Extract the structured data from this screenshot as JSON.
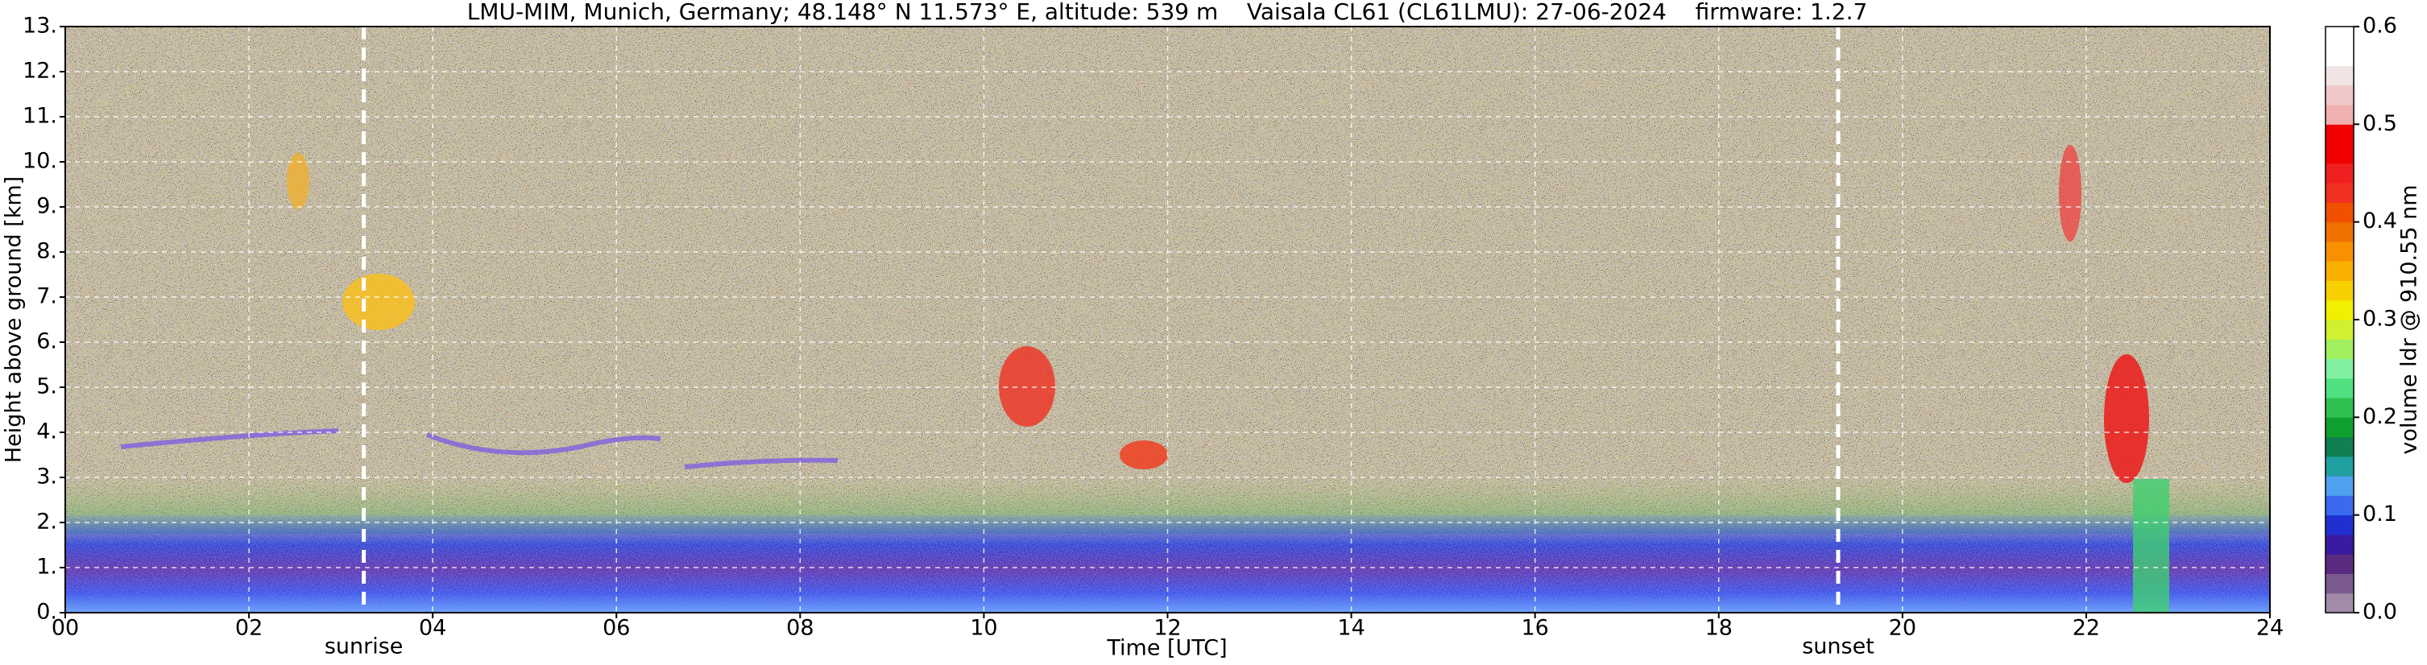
{
  "chart_data": {
    "type": "heatmap",
    "title": "LMU-MIM, Munich, Germany; 48.148° N 11.573° E, altitude: 539 m    Vaisala CL61 (CL61LMU): 27-06-2024    firmware: 1.2.7",
    "x_label": "Time [UTC]",
    "y_label": "Height above ground [km]",
    "xlim": [
      0,
      24
    ],
    "xticks": [
      {
        "value": 0,
        "label": "00"
      },
      {
        "value": 2,
        "label": "02"
      },
      {
        "value": 4,
        "label": "04"
      },
      {
        "value": 6,
        "label": "06"
      },
      {
        "value": 8,
        "label": "08"
      },
      10,
      12,
      14,
      16,
      18,
      20,
      22,
      24
    ],
    "ylim": [
      0,
      13
    ],
    "yticks": [
      {
        "value": 0,
        "label": "0."
      },
      {
        "value": 1,
        "label": "1."
      },
      {
        "value": 2,
        "label": "2."
      },
      {
        "value": 3,
        "label": "3."
      },
      {
        "value": 4,
        "label": "4."
      },
      {
        "value": 5,
        "label": "5."
      },
      {
        "value": 6,
        "label": "6."
      },
      {
        "value": 7,
        "label": "7."
      },
      {
        "value": 8,
        "label": "8."
      },
      {
        "value": 9,
        "label": "9."
      },
      {
        "value": 10,
        "label": "10."
      },
      {
        "value": 11,
        "label": "11."
      },
      {
        "value": 12,
        "label": "12."
      },
      {
        "value": 13,
        "label": "13."
      }
    ],
    "grid": true,
    "annotations": [
      {
        "x": 3.25,
        "label": "sunrise"
      },
      {
        "x": 19.3,
        "label": "sunset"
      }
    ],
    "colorbar_label": "volume ldr @ 910.55 nm",
    "clim": [
      0,
      0.6
    ],
    "cticks": [
      {
        "value": 0,
        "label": "0.0"
      },
      0.1,
      0.2,
      0.3,
      0.4,
      0.5,
      0.6
    ],
    "colormap": [
      "#a08ca8",
      "#7a5a90",
      "#5a2a80",
      "#3a1aa0",
      "#2030d0",
      "#3a6af0",
      "#50a0f0",
      "#20a0a0",
      "#108050",
      "#10a030",
      "#30c050",
      "#50e080",
      "#80f0a0",
      "#a0f060",
      "#d0f030",
      "#f0f000",
      "#f8d000",
      "#f8b000",
      "#f89000",
      "#f07000",
      "#f05000",
      "#f03020",
      "#f02020",
      "#f00000",
      "#f00000",
      "#f0b0b0",
      "#f0c8c8",
      "#f0e4e4",
      "#ffffff",
      "#ffffff"
    ]
  }
}
